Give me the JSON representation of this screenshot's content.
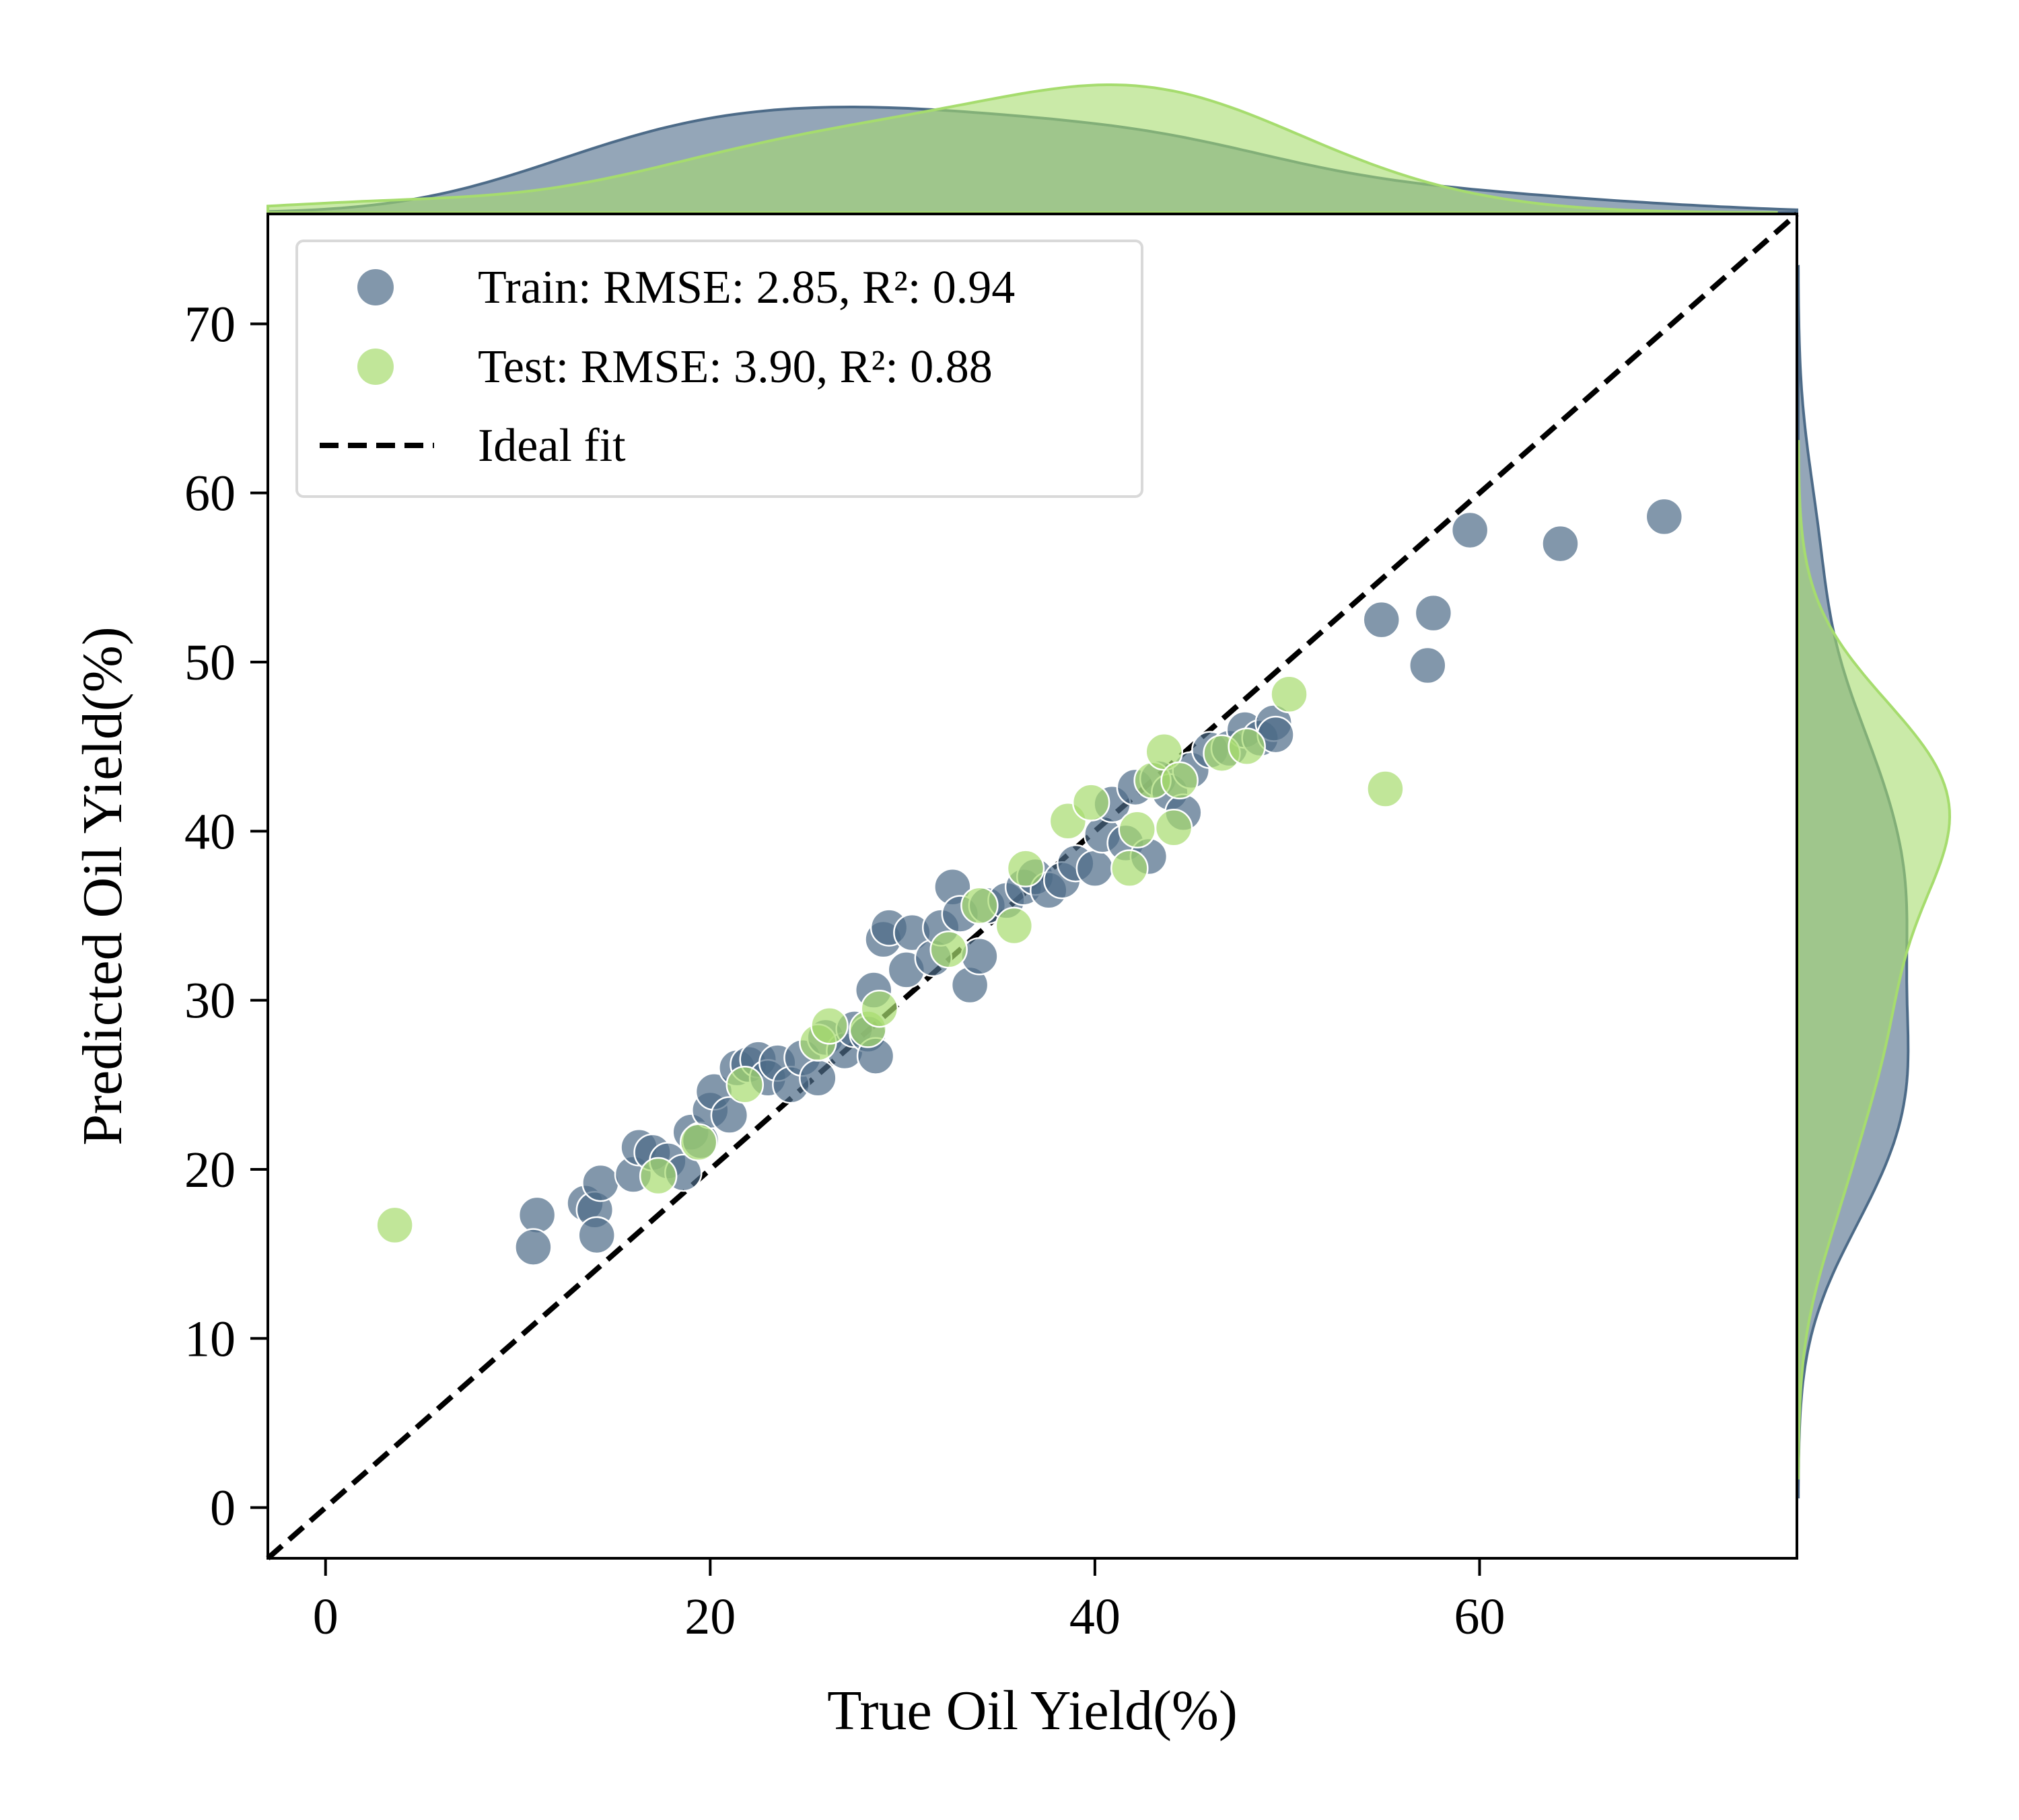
{
  "chart_data": {
    "type": "scatter",
    "title": "",
    "xlabel": "True Oil Yield(%)",
    "ylabel": "Predicted Oil Yield(%)",
    "xlim": [
      -3,
      76.5
    ],
    "ylim": [
      -3,
      76.5
    ],
    "xticks": [
      0,
      20,
      40,
      60
    ],
    "yticks": [
      0,
      10,
      20,
      30,
      40,
      50,
      60,
      70
    ],
    "grid": false,
    "legend_position": "upper-left",
    "marginals": "kde density on top (x) and right (y) for each series",
    "colors": {
      "train": "#4d6b88",
      "test": "#a6dc6e",
      "ideal": "#000000"
    },
    "series": [
      {
        "name": "Train: RMSE: 2.85, R²: 0.94",
        "color": "#4d6b88",
        "points": [
          [
            11.0,
            17.3
          ],
          [
            10.8,
            15.4
          ],
          [
            13.5,
            18.0
          ],
          [
            14.0,
            17.6
          ],
          [
            14.3,
            19.2
          ],
          [
            14.1,
            16.1
          ],
          [
            16.0,
            19.7
          ],
          [
            16.3,
            21.3
          ],
          [
            17.0,
            21.0
          ],
          [
            17.8,
            20.5
          ],
          [
            18.6,
            19.8
          ],
          [
            19.0,
            22.2
          ],
          [
            19.5,
            21.7
          ],
          [
            20.0,
            23.5
          ],
          [
            20.2,
            24.6
          ],
          [
            21.0,
            23.2
          ],
          [
            21.4,
            26.0
          ],
          [
            22.0,
            26.2
          ],
          [
            22.5,
            26.5
          ],
          [
            23.0,
            25.4
          ],
          [
            23.5,
            26.3
          ],
          [
            24.2,
            25.0
          ],
          [
            24.8,
            26.6
          ],
          [
            25.6,
            25.4
          ],
          [
            26.0,
            27.8
          ],
          [
            27.0,
            27.0
          ],
          [
            27.5,
            28.3
          ],
          [
            28.2,
            28.0
          ],
          [
            28.6,
            26.7
          ],
          [
            28.5,
            30.6
          ],
          [
            29.0,
            33.6
          ],
          [
            29.3,
            34.3
          ],
          [
            30.2,
            31.8
          ],
          [
            30.5,
            34.0
          ],
          [
            31.6,
            32.5
          ],
          [
            32.0,
            34.3
          ],
          [
            32.6,
            36.7
          ],
          [
            33.0,
            35.1
          ],
          [
            33.5,
            30.9
          ],
          [
            34.0,
            32.6
          ],
          [
            34.4,
            35.6
          ],
          [
            35.4,
            35.9
          ],
          [
            36.3,
            36.7
          ],
          [
            36.9,
            37.3
          ],
          [
            37.6,
            36.5
          ],
          [
            38.3,
            37.1
          ],
          [
            39.0,
            38.1
          ],
          [
            40.0,
            37.8
          ],
          [
            40.4,
            39.8
          ],
          [
            40.9,
            41.6
          ],
          [
            41.6,
            39.3
          ],
          [
            42.1,
            42.6
          ],
          [
            42.8,
            38.5
          ],
          [
            43.3,
            43.1
          ],
          [
            43.9,
            42.3
          ],
          [
            44.6,
            41.1
          ],
          [
            45.0,
            43.6
          ],
          [
            46.0,
            44.8
          ],
          [
            47.0,
            44.9
          ],
          [
            47.8,
            46.0
          ],
          [
            48.6,
            45.5
          ],
          [
            49.3,
            46.4
          ],
          [
            49.4,
            45.7
          ],
          [
            54.9,
            52.5
          ],
          [
            57.3,
            49.8
          ],
          [
            57.6,
            52.9
          ],
          [
            59.5,
            57.8
          ],
          [
            64.2,
            57.0
          ],
          [
            69.6,
            58.6
          ]
        ]
      },
      {
        "name": "Test: RMSE: 3.90, R²: 0.88",
        "color": "#a6dc6e",
        "points": [
          [
            3.6,
            16.7
          ],
          [
            17.3,
            19.6
          ],
          [
            19.4,
            21.6
          ],
          [
            21.8,
            25.0
          ],
          [
            25.6,
            27.5
          ],
          [
            26.2,
            28.5
          ],
          [
            28.2,
            28.3
          ],
          [
            28.8,
            29.5
          ],
          [
            32.4,
            33.0
          ],
          [
            34.0,
            35.6
          ],
          [
            35.8,
            34.4
          ],
          [
            36.4,
            37.8
          ],
          [
            38.6,
            40.6
          ],
          [
            39.8,
            41.7
          ],
          [
            41.8,
            37.8
          ],
          [
            42.2,
            40.1
          ],
          [
            43.0,
            43.0
          ],
          [
            43.6,
            44.7
          ],
          [
            44.1,
            40.2
          ],
          [
            44.4,
            43.0
          ],
          [
            46.6,
            44.6
          ],
          [
            47.9,
            45.0
          ],
          [
            50.1,
            48.1
          ],
          [
            55.1,
            42.5
          ]
        ]
      },
      {
        "name": "Ideal fit",
        "color": "#000000",
        "line": [
          [
            -3,
            -3
          ],
          [
            76.5,
            76.5
          ]
        ]
      }
    ],
    "legend": [
      {
        "label": "Train: RMSE: 2.85, R²: 0.94",
        "marker": "circle",
        "color": "#4d6b88"
      },
      {
        "label": "Test: RMSE: 3.90, R²: 0.88",
        "marker": "circle",
        "color": "#a6dc6e"
      },
      {
        "label": "Ideal fit",
        "marker": "dashed-line",
        "color": "#000000"
      }
    ]
  }
}
